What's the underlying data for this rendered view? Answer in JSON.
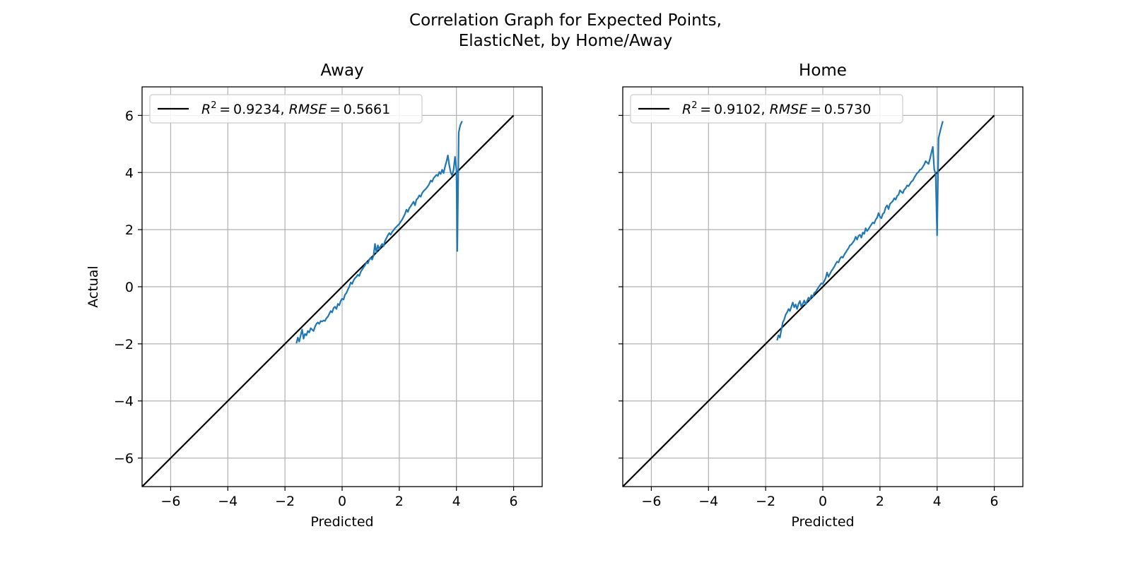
{
  "figure": {
    "title_line1": "Correlation Graph for Expected Points,",
    "title_line2": "ElasticNet, by Home/Away"
  },
  "chart_data": [
    {
      "type": "line",
      "title": "Away",
      "xlabel": "Predicted",
      "ylabel": "Actual",
      "xlim": [
        -7,
        7
      ],
      "ylim": [
        -7,
        7
      ],
      "xticks": [
        -6,
        -4,
        -2,
        0,
        2,
        4,
        6
      ],
      "yticks": [
        -6,
        -4,
        -2,
        0,
        2,
        4,
        6
      ],
      "tick_labels": [
        "−6",
        "−4",
        "−2",
        "0",
        "2",
        "4",
        "6"
      ],
      "grid": true,
      "legend": {
        "placement": "upper-left",
        "entry": {
          "r2": "0.9234",
          "rmse": "0.5661"
        }
      },
      "series": [
        {
          "x": [
            -7,
            6
          ],
          "y": [
            -7,
            6
          ],
          "color": "#000000"
        },
        {
          "color": "#1f77b4",
          "x": [
            -1.6,
            -1.55,
            -1.5,
            -1.45,
            -1.4,
            -1.35,
            -1.3,
            -1.25,
            -1.2,
            -1.15,
            -1.1,
            -1.05,
            -1.0,
            -0.95,
            -0.9,
            -0.85,
            -0.8,
            -0.75,
            -0.7,
            -0.65,
            -0.6,
            -0.55,
            -0.5,
            -0.45,
            -0.4,
            -0.35,
            -0.3,
            -0.25,
            -0.2,
            -0.15,
            -0.1,
            -0.05,
            0.0,
            0.05,
            0.1,
            0.15,
            0.2,
            0.25,
            0.3,
            0.35,
            0.4,
            0.45,
            0.5,
            0.55,
            0.6,
            0.65,
            0.7,
            0.75,
            0.8,
            0.85,
            0.9,
            0.95,
            1.0,
            1.05,
            1.1,
            1.15,
            1.2,
            1.25,
            1.3,
            1.35,
            1.4,
            1.45,
            1.5,
            1.55,
            1.6,
            1.65,
            1.7,
            1.75,
            1.8,
            1.85,
            1.9,
            1.95,
            2.0,
            2.05,
            2.1,
            2.15,
            2.2,
            2.25,
            2.3,
            2.35,
            2.4,
            2.45,
            2.5,
            2.55,
            2.6,
            2.65,
            2.7,
            2.75,
            2.8,
            2.85,
            2.9,
            2.95,
            3.0,
            3.05,
            3.1,
            3.15,
            3.2,
            3.25,
            3.3,
            3.35,
            3.4,
            3.45,
            3.5,
            3.55,
            3.6,
            3.65,
            3.7,
            3.75,
            3.8,
            3.85,
            3.9,
            3.95,
            4.0,
            4.03,
            4.08,
            4.13,
            4.2
          ],
          "y": [
            -1.98,
            -1.78,
            -1.92,
            -1.7,
            -1.5,
            -1.82,
            -1.65,
            -1.7,
            -1.55,
            -1.6,
            -1.45,
            -1.5,
            -1.55,
            -1.4,
            -1.3,
            -1.25,
            -1.3,
            -1.2,
            -1.22,
            -1.18,
            -1.2,
            -1.1,
            -1.05,
            -0.95,
            -0.85,
            -0.9,
            -0.75,
            -0.7,
            -0.78,
            -0.6,
            -0.65,
            -0.5,
            -0.42,
            -0.45,
            -0.28,
            -0.22,
            -0.1,
            0.0,
            0.15,
            0.1,
            0.22,
            0.3,
            0.35,
            0.42,
            0.38,
            0.52,
            0.6,
            0.68,
            0.75,
            0.85,
            0.82,
            0.95,
            1.02,
            0.95,
            1.1,
            1.5,
            1.2,
            1.45,
            1.32,
            1.42,
            1.5,
            1.42,
            1.6,
            1.7,
            1.8,
            1.88,
            1.82,
            1.92,
            1.98,
            2.05,
            2.1,
            2.15,
            2.2,
            2.28,
            2.35,
            2.45,
            2.55,
            2.7,
            2.62,
            2.75,
            2.82,
            2.9,
            2.98,
            2.85,
            3.05,
            3.1,
            3.2,
            3.15,
            3.28,
            3.35,
            3.4,
            3.45,
            3.52,
            3.6,
            3.72,
            3.68,
            3.8,
            3.86,
            3.92,
            3.88,
            4.02,
            3.95,
            4.1,
            3.98,
            4.2,
            4.38,
            4.6,
            4.25,
            4.0,
            3.9,
            4.1,
            4.55,
            4.1,
            1.25,
            5.4,
            5.65,
            5.8
          ]
        }
      ]
    },
    {
      "type": "line",
      "title": "Home",
      "xlabel": "Predicted",
      "ylabel": "",
      "xlim": [
        -7,
        7
      ],
      "ylim": [
        -7,
        7
      ],
      "xticks": [
        -6,
        -4,
        -2,
        0,
        2,
        4,
        6
      ],
      "yticks": [
        -6,
        -4,
        -2,
        0,
        2,
        4,
        6
      ],
      "tick_labels": [
        "−6",
        "−4",
        "−2",
        "0",
        "2",
        "4",
        "6"
      ],
      "grid": true,
      "legend": {
        "placement": "upper-left",
        "entry": {
          "r2": "0.9102",
          "rmse": "0.5730"
        }
      },
      "series": [
        {
          "x": [
            -7,
            6
          ],
          "y": [
            -7,
            6
          ],
          "color": "#000000"
        },
        {
          "color": "#1f77b4",
          "x": [
            -1.6,
            -1.55,
            -1.5,
            -1.45,
            -1.4,
            -1.35,
            -1.3,
            -1.25,
            -1.2,
            -1.15,
            -1.1,
            -1.05,
            -1.0,
            -0.95,
            -0.9,
            -0.85,
            -0.8,
            -0.75,
            -0.7,
            -0.65,
            -0.6,
            -0.55,
            -0.5,
            -0.45,
            -0.4,
            -0.35,
            -0.3,
            -0.25,
            -0.2,
            -0.15,
            -0.1,
            -0.05,
            0.0,
            0.05,
            0.1,
            0.15,
            0.2,
            0.25,
            0.3,
            0.35,
            0.4,
            0.45,
            0.5,
            0.55,
            0.6,
            0.65,
            0.7,
            0.75,
            0.8,
            0.85,
            0.9,
            0.95,
            1.0,
            1.05,
            1.1,
            1.15,
            1.2,
            1.25,
            1.3,
            1.35,
            1.4,
            1.45,
            1.5,
            1.55,
            1.6,
            1.65,
            1.7,
            1.75,
            1.8,
            1.85,
            1.9,
            1.95,
            2.0,
            2.05,
            2.1,
            2.15,
            2.2,
            2.25,
            2.3,
            2.35,
            2.4,
            2.45,
            2.5,
            2.55,
            2.6,
            2.65,
            2.7,
            2.75,
            2.8,
            2.85,
            2.9,
            2.95,
            3.0,
            3.05,
            3.1,
            3.15,
            3.2,
            3.25,
            3.3,
            3.35,
            3.4,
            3.45,
            3.5,
            3.55,
            3.6,
            3.65,
            3.7,
            3.75,
            3.8,
            3.85,
            3.9,
            3.95,
            4.0,
            4.05,
            4.12,
            4.2
          ],
          "y": [
            -1.88,
            -1.7,
            -1.78,
            -1.5,
            -1.25,
            -1.15,
            -0.98,
            -0.9,
            -0.78,
            -0.85,
            -0.7,
            -0.55,
            -0.72,
            -0.62,
            -0.78,
            -0.6,
            -0.5,
            -0.7,
            -0.6,
            -0.48,
            -0.62,
            -0.5,
            -0.38,
            -0.45,
            -0.3,
            -0.35,
            -0.22,
            -0.18,
            -0.1,
            -0.02,
            0.05,
            0.12,
            0.1,
            0.2,
            0.3,
            0.5,
            0.35,
            0.45,
            0.55,
            0.62,
            0.7,
            0.8,
            0.88,
            0.85,
            0.98,
            1.05,
            1.02,
            1.12,
            1.2,
            1.28,
            1.35,
            1.45,
            1.48,
            1.55,
            1.62,
            1.75,
            1.65,
            1.78,
            1.82,
            1.72,
            1.9,
            1.85,
            2.05,
            1.95,
            2.02,
            2.1,
            2.18,
            2.25,
            2.22,
            2.35,
            2.42,
            2.58,
            2.45,
            2.4,
            2.55,
            2.6,
            2.78,
            2.85,
            2.72,
            2.9,
            2.95,
            3.0,
            3.1,
            3.05,
            3.18,
            3.22,
            3.38,
            3.32,
            3.28,
            3.4,
            3.45,
            3.55,
            3.52,
            3.6,
            3.68,
            3.72,
            3.82,
            3.9,
            3.98,
            4.02,
            4.1,
            4.12,
            4.2,
            4.28,
            4.4,
            4.35,
            4.3,
            4.48,
            4.7,
            4.9,
            4.1,
            3.95,
            1.8,
            5.2,
            5.5,
            5.8
          ]
        }
      ]
    }
  ]
}
